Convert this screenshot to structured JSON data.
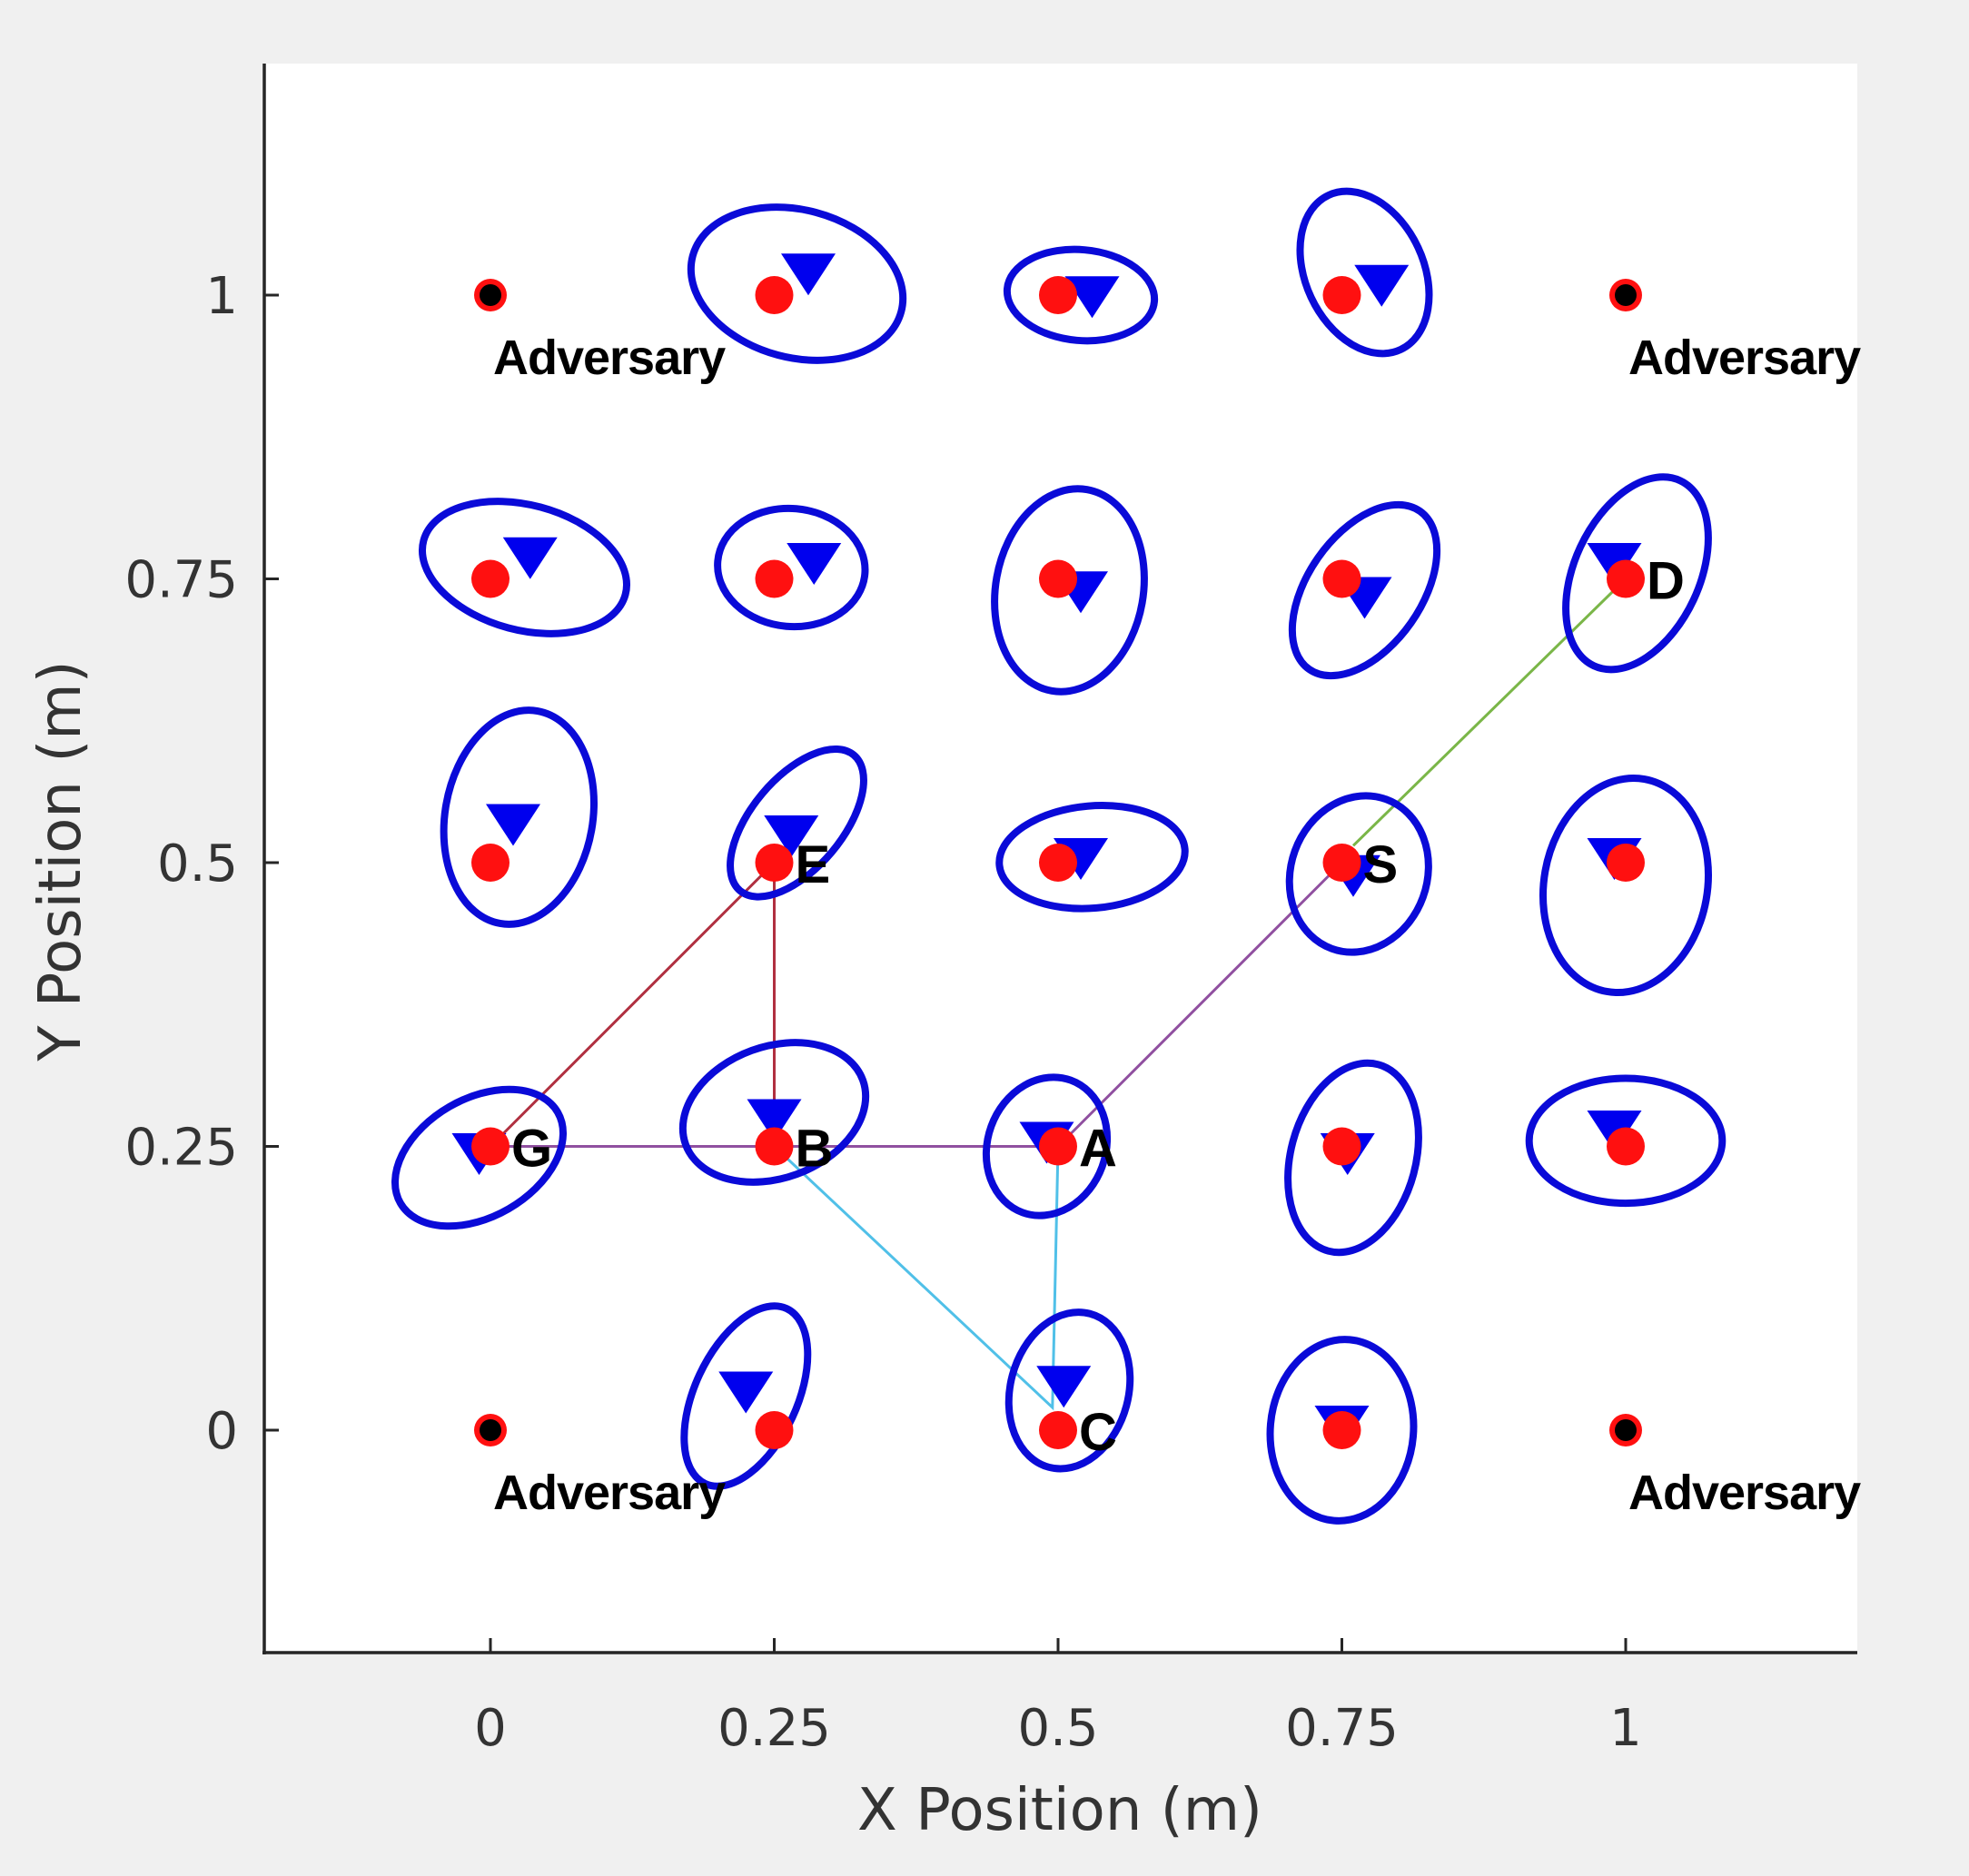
{
  "chart_data": {
    "type": "scatter",
    "title": "",
    "xlabel": "X Position (m)",
    "ylabel": "Y Position (m)",
    "xlim": [
      -0.2,
      1.2
    ],
    "ylim": [
      -0.2,
      1.2
    ],
    "xticks": [
      0,
      0.25,
      0.5,
      0.75,
      1
    ],
    "xtick_labels": [
      "0",
      "0.25",
      "0.5",
      "0.75",
      "1"
    ],
    "yticks": [
      0,
      0.25,
      0.5,
      0.75,
      1
    ],
    "ytick_labels": [
      "0",
      "0.25",
      "0.5",
      "0.75",
      "1"
    ],
    "grid": false,
    "colors": {
      "node": "#ff1010",
      "estimate": "#0000ee",
      "ellipse": "#0a0ad8",
      "adversary": "#000000"
    },
    "adversaries": [
      {
        "x": 0,
        "y": 1,
        "label": "Adversary"
      },
      {
        "x": 1,
        "y": 1,
        "label": "Adversary"
      },
      {
        "x": 0,
        "y": 0,
        "label": "Adversary"
      },
      {
        "x": 1,
        "y": 0,
        "label": "Adversary"
      }
    ],
    "nodes": [
      {
        "x": 0.25,
        "y": 1,
        "est_x": 0.28,
        "est_y": 1.02,
        "ellipse": {
          "cx": 0.27,
          "cy": 1.01,
          "rx": 0.095,
          "ry": 0.065,
          "angle": -15
        },
        "label": ""
      },
      {
        "x": 0.5,
        "y": 1,
        "est_x": 0.53,
        "est_y": 1.0,
        "ellipse": {
          "cx": 0.52,
          "cy": 1.0,
          "rx": 0.065,
          "ry": 0.04,
          "angle": -5
        },
        "label": ""
      },
      {
        "x": 0.75,
        "y": 1,
        "est_x": 0.785,
        "est_y": 1.01,
        "ellipse": {
          "cx": 0.77,
          "cy": 1.02,
          "rx": 0.075,
          "ry": 0.052,
          "angle": -65
        },
        "label": ""
      },
      {
        "x": 0,
        "y": 0.75,
        "est_x": 0.035,
        "est_y": 0.77,
        "ellipse": {
          "cx": 0.03,
          "cy": 0.76,
          "rx": 0.092,
          "ry": 0.055,
          "angle": -15
        },
        "label": ""
      },
      {
        "x": 0.25,
        "y": 0.75,
        "est_x": 0.285,
        "est_y": 0.765,
        "ellipse": {
          "cx": 0.265,
          "cy": 0.76,
          "rx": 0.065,
          "ry": 0.052,
          "angle": -5
        },
        "label": ""
      },
      {
        "x": 0.5,
        "y": 0.75,
        "est_x": 0.52,
        "est_y": 0.74,
        "ellipse": {
          "cx": 0.51,
          "cy": 0.74,
          "rx": 0.09,
          "ry": 0.065,
          "angle": 80
        },
        "label": ""
      },
      {
        "x": 0.75,
        "y": 0.75,
        "est_x": 0.77,
        "est_y": 0.735,
        "ellipse": {
          "cx": 0.77,
          "cy": 0.74,
          "rx": 0.085,
          "ry": 0.05,
          "angle": 55
        },
        "label": ""
      },
      {
        "x": 1,
        "y": 0.75,
        "est_x": 0.99,
        "est_y": 0.765,
        "ellipse": {
          "cx": 1.01,
          "cy": 0.755,
          "rx": 0.09,
          "ry": 0.055,
          "angle": 65
        },
        "label": "D"
      },
      {
        "x": 0,
        "y": 0.5,
        "est_x": 0.02,
        "est_y": 0.535,
        "ellipse": {
          "cx": 0.025,
          "cy": 0.54,
          "rx": 0.095,
          "ry": 0.065,
          "angle": 80
        },
        "label": ""
      },
      {
        "x": 0.25,
        "y": 0.5,
        "est_x": 0.265,
        "est_y": 0.525,
        "ellipse": {
          "cx": 0.27,
          "cy": 0.535,
          "rx": 0.078,
          "ry": 0.04,
          "angle": 50
        },
        "label": "E"
      },
      {
        "x": 0.5,
        "y": 0.5,
        "est_x": 0.52,
        "est_y": 0.505,
        "ellipse": {
          "cx": 0.53,
          "cy": 0.505,
          "rx": 0.082,
          "ry": 0.045,
          "angle": 5
        },
        "label": ""
      },
      {
        "x": 0.75,
        "y": 0.5,
        "est_x": 0.76,
        "est_y": 0.49,
        "ellipse": {
          "cx": 0.765,
          "cy": 0.49,
          "rx": 0.07,
          "ry": 0.06,
          "angle": 70
        },
        "label": "S"
      },
      {
        "x": 1,
        "y": 0.5,
        "est_x": 0.99,
        "est_y": 0.505,
        "ellipse": {
          "cx": 1.0,
          "cy": 0.48,
          "rx": 0.095,
          "ry": 0.072,
          "angle": 80
        },
        "label": ""
      },
      {
        "x": 0,
        "y": 0.25,
        "est_x": -0.01,
        "est_y": 0.245,
        "ellipse": {
          "cx": -0.01,
          "cy": 0.24,
          "rx": 0.08,
          "ry": 0.052,
          "angle": 30
        },
        "label": "G"
      },
      {
        "x": 0.25,
        "y": 0.25,
        "est_x": 0.25,
        "est_y": 0.275,
        "ellipse": {
          "cx": 0.25,
          "cy": 0.28,
          "rx": 0.083,
          "ry": 0.058,
          "angle": 20
        },
        "label": "B"
      },
      {
        "x": 0.5,
        "y": 0.25,
        "est_x": 0.49,
        "est_y": 0.255,
        "ellipse": {
          "cx": 0.49,
          "cy": 0.25,
          "rx": 0.062,
          "ry": 0.052,
          "angle": 70
        },
        "label": "A"
      },
      {
        "x": 0.75,
        "y": 0.25,
        "est_x": 0.755,
        "est_y": 0.245,
        "ellipse": {
          "cx": 0.76,
          "cy": 0.24,
          "rx": 0.085,
          "ry": 0.055,
          "angle": 75
        },
        "label": ""
      },
      {
        "x": 1,
        "y": 0.25,
        "est_x": 0.99,
        "est_y": 0.265,
        "ellipse": {
          "cx": 1.0,
          "cy": 0.255,
          "rx": 0.085,
          "ry": 0.055,
          "angle": 0
        },
        "label": ""
      },
      {
        "x": 0.25,
        "y": 0,
        "est_x": 0.225,
        "est_y": 0.035,
        "ellipse": {
          "cx": 0.225,
          "cy": 0.03,
          "rx": 0.085,
          "ry": 0.045,
          "angle": 65
        },
        "label": ""
      },
      {
        "x": 0.5,
        "y": 0,
        "est_x": 0.505,
        "est_y": 0.04,
        "ellipse": {
          "cx": 0.51,
          "cy": 0.035,
          "rx": 0.07,
          "ry": 0.052,
          "angle": 75
        },
        "label": "C"
      },
      {
        "x": 0.75,
        "y": 0,
        "est_x": 0.75,
        "est_y": 0.005,
        "ellipse": {
          "cx": 0.75,
          "cy": 0.0,
          "rx": 0.08,
          "ry": 0.063,
          "angle": 85
        },
        "label": ""
      }
    ],
    "paths": [
      {
        "color": "#7ab648",
        "points": [
          [
            0.76,
            0.515
          ],
          [
            1.0,
            0.75
          ]
        ]
      },
      {
        "color": "#9050a0",
        "points": [
          [
            0.5,
            0.25
          ],
          [
            0.75,
            0.5
          ]
        ]
      },
      {
        "color": "#9050a0",
        "points": [
          [
            0.0,
            0.25
          ],
          [
            0.5,
            0.25
          ]
        ]
      },
      {
        "color": "#b03040",
        "points": [
          [
            0.0,
            0.25
          ],
          [
            0.25,
            0.5
          ],
          [
            0.25,
            0.25
          ]
        ]
      },
      {
        "color": "#50c0e8",
        "points": [
          [
            0.25,
            0.25
          ],
          [
            0.495,
            0.02
          ],
          [
            0.5,
            0.25
          ]
        ]
      }
    ]
  }
}
